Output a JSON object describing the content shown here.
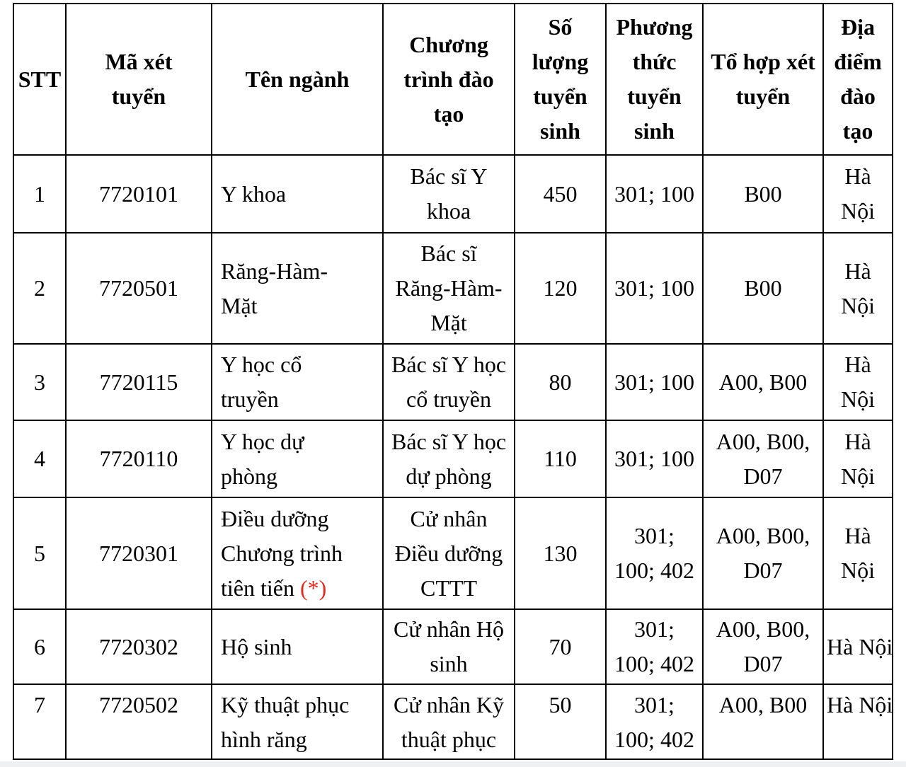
{
  "page": {
    "background": "#ffffff",
    "bottom_strip_color": "#eff0f2"
  },
  "colors": {
    "text": "#000000",
    "border": "#000000",
    "note_red": "#e02b20"
  },
  "table": {
    "columns": [
      {
        "key": "stt",
        "label": "STT"
      },
      {
        "key": "ma-xet-tuyen",
        "label": "Mã xét\ntuyển"
      },
      {
        "key": "ten-nganh",
        "label": "Tên ngành"
      },
      {
        "key": "chuong-trinh-dao-tao",
        "label": "Chương\ntrình đào\ntạo"
      },
      {
        "key": "so-luong-tuyen-sinh",
        "label": "Số\nlượng\ntuyển\nsinh"
      },
      {
        "key": "phuong-thuc-tuyen-sinh",
        "label": "Phương\nthức\ntuyển\nsinh"
      },
      {
        "key": "to-hop-xet-tuyen",
        "label": "Tổ hợp xét\ntuyển"
      },
      {
        "key": "dia-diem-dao-tao",
        "label": "Địa\nđiểm\nđào\ntạo"
      }
    ],
    "rows": [
      {
        "cells": [
          {
            "text": "1"
          },
          {
            "text": "7720101"
          },
          {
            "text": "Y khoa"
          },
          {
            "text": "Bác sĩ Y\nkhoa"
          },
          {
            "text": "450"
          },
          {
            "text": "301; 100"
          },
          {
            "text": "B00"
          },
          {
            "text": "Hà\nNội"
          }
        ]
      },
      {
        "cells": [
          {
            "text": "2"
          },
          {
            "text": "7720501"
          },
          {
            "text": "Răng-Hàm-\nMặt"
          },
          {
            "text": "Bác sĩ\nRăng-Hàm-\nMặt"
          },
          {
            "text": "120"
          },
          {
            "text": "301; 100"
          },
          {
            "text": "B00"
          },
          {
            "text": "Hà\nNội"
          }
        ]
      },
      {
        "cells": [
          {
            "text": "3"
          },
          {
            "text": "7720115"
          },
          {
            "text": "Y học cổ\ntruyền"
          },
          {
            "text": "Bác sĩ Y học\ncổ truyền"
          },
          {
            "text": "80"
          },
          {
            "text": "301; 100"
          },
          {
            "text": "A00, B00"
          },
          {
            "text": "Hà\nNội"
          }
        ]
      },
      {
        "cells": [
          {
            "text": "4"
          },
          {
            "text": "7720110"
          },
          {
            "text": "Y học dự\nphòng"
          },
          {
            "text": "Bác sĩ Y học\ndự phòng"
          },
          {
            "text": "110"
          },
          {
            "text": "301; 100"
          },
          {
            "text": "A00, B00,\nD07"
          },
          {
            "text": "Hà\nNội"
          }
        ]
      },
      {
        "cells": [
          {
            "text": "5"
          },
          {
            "text": "7720301"
          },
          {
            "text": "Điều dưỡng\nChương trình\ntiên tiến ",
            "note": "(*)"
          },
          {
            "text": "Cử nhân\nĐiều dưỡng\nCTTT"
          },
          {
            "text": "130"
          },
          {
            "text": "301;\n100; 402"
          },
          {
            "text": "A00, B00,\nD07"
          },
          {
            "text": "Hà\nNội"
          }
        ]
      },
      {
        "cells": [
          {
            "text": "6"
          },
          {
            "text": "7720302"
          },
          {
            "text": "Hộ sinh"
          },
          {
            "text": "Cử nhân Hộ\nsinh"
          },
          {
            "text": "70"
          },
          {
            "text": "301;\n100; 402"
          },
          {
            "text": "A00, B00,\nD07"
          },
          {
            "text": "Hà Nội"
          }
        ]
      },
      {
        "cells": [
          {
            "text": "7"
          },
          {
            "text": "7720502"
          },
          {
            "text": "Kỹ thuật phục\nhình răng"
          },
          {
            "text": "Cử nhân Kỹ\nthuật phục"
          },
          {
            "text": "50"
          },
          {
            "text": "301;\n100; 402"
          },
          {
            "text": "A00, B00"
          },
          {
            "text": "Hà Nội"
          }
        ]
      }
    ]
  }
}
